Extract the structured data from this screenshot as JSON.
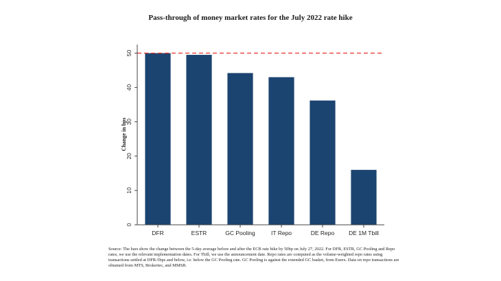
{
  "title": "Pass-through of  money market rates for the July 2022 rate hike",
  "source_note": "Source: The bars show the change between the 5-day average before and after the ECB rate hike by 50bp on July 27, 2022. For DFR, ESTR, GC Pooling and Repo rates, we use the relevant implementation dates. For Tbill, we use the announcement date. Repo rates are computed as the volume-weighted repo rates using transactions settled at DFR-5bps and below, i.e. below the GC Pooling rate. GC Pooling is against the extended GC basket, from Eurex. Data on repo transactions are obtained from MTS, Brokertec, and MMSR.",
  "chart_data": {
    "type": "bar",
    "title": "Pass-through of  money market rates for the July 2022 rate hike",
    "xlabel": "",
    "ylabel": "Change in bps",
    "categories": [
      "DFR",
      "ESTR",
      "GC Pooling",
      "IT Repo",
      "DE Repo",
      "DE 1M Tbill"
    ],
    "values": [
      50,
      49.5,
      44.2,
      43,
      36.2,
      16
    ],
    "ylim": [
      0,
      52.5
    ],
    "yticks": [
      0,
      10,
      20,
      30,
      40,
      50
    ],
    "grid": false,
    "reference_line": {
      "value": 50,
      "style": "dashed",
      "color": "#e8312a"
    },
    "bar_color": "#1c4470",
    "axis_color": "#444444"
  }
}
